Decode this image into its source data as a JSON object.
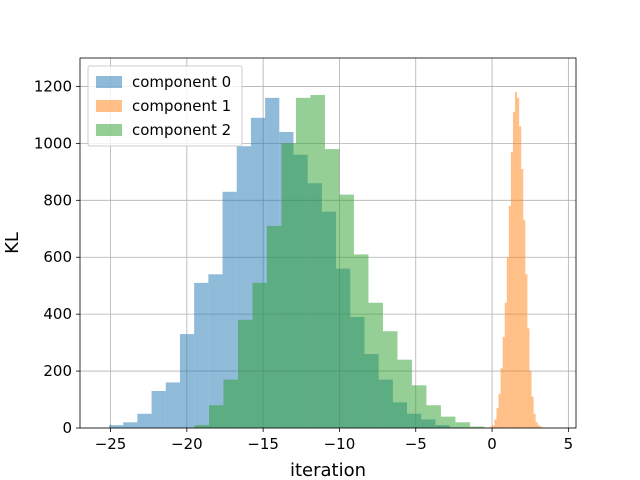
{
  "chart_data": {
    "type": "histogram",
    "title": "",
    "xlabel": "iteration",
    "ylabel": "KL",
    "xlim": [
      -27,
      5.5
    ],
    "ylim": [
      0,
      1300
    ],
    "xticks": [
      -25,
      -20,
      -15,
      -10,
      -5,
      0,
      5
    ],
    "xtick_labels": [
      "−25",
      "−20",
      "−15",
      "−10",
      "−5",
      "0",
      "5"
    ],
    "yticks": [
      0,
      200,
      400,
      600,
      800,
      1000,
      1200
    ],
    "ytick_labels": [
      "0",
      "200",
      "400",
      "600",
      "800",
      "1000",
      "1200"
    ],
    "grid": true,
    "legend_position": "upper left",
    "series": [
      {
        "name": "component 0",
        "color": "#1f77b4",
        "alpha": 0.5,
        "bin_start": -25.1,
        "bin_width": 0.93,
        "values": [
          10,
          20,
          50,
          130,
          160,
          330,
          510,
          540,
          830,
          990,
          1090,
          1160,
          1040,
          960,
          860,
          760,
          560,
          390,
          260,
          170,
          90,
          50,
          30,
          10,
          2
        ]
      },
      {
        "name": "component 1",
        "color": "#ff7f0e",
        "alpha": 0.5,
        "bin_start": -0.25,
        "bin_width": 0.135,
        "values": [
          2,
          5,
          10,
          30,
          70,
          120,
          210,
          320,
          440,
          600,
          780,
          970,
          1110,
          1180,
          1160,
          1060,
          910,
          730,
          540,
          350,
          200,
          110,
          50,
          20,
          10,
          5,
          2
        ]
      },
      {
        "name": "component 2",
        "color": "#2ca02c",
        "alpha": 0.5,
        "bin_start": -19.5,
        "bin_width": 0.95,
        "values": [
          10,
          80,
          170,
          380,
          510,
          710,
          1000,
          1160,
          1170,
          980,
          820,
          610,
          440,
          340,
          240,
          150,
          80,
          40,
          20,
          5
        ]
      }
    ]
  }
}
